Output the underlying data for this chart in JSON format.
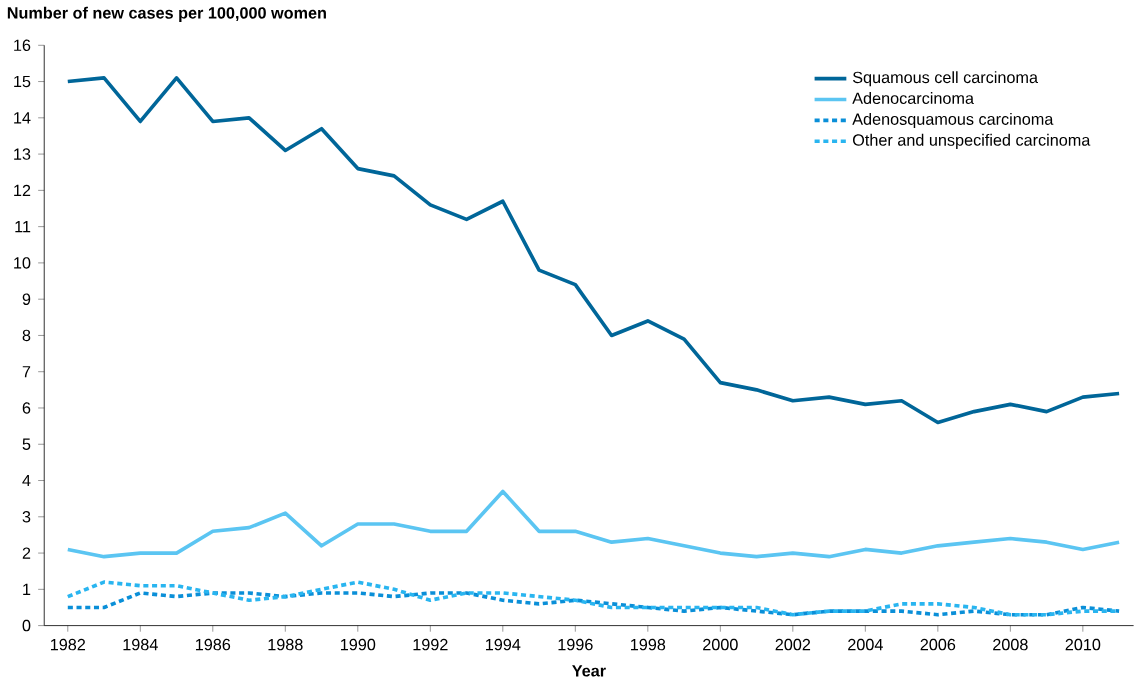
{
  "chart_data": {
    "type": "line",
    "ylabel": "Number of new cases per 100,000 women",
    "xlabel": "Year",
    "x": [
      1982,
      1983,
      1984,
      1985,
      1986,
      1987,
      1988,
      1989,
      1990,
      1991,
      1992,
      1993,
      1994,
      1995,
      1996,
      1997,
      1998,
      1999,
      2000,
      2001,
      2002,
      2003,
      2004,
      2005,
      2006,
      2007,
      2008,
      2009,
      2010,
      2011
    ],
    "series": [
      {
        "name": "Squamous cell carcinoma",
        "color": "#006699",
        "line_style": "solid",
        "values": [
          15.0,
          15.1,
          13.9,
          15.1,
          13.9,
          14.0,
          13.1,
          13.7,
          12.6,
          12.4,
          11.6,
          11.2,
          11.7,
          9.8,
          9.4,
          8.0,
          8.4,
          7.9,
          6.7,
          6.5,
          6.2,
          6.3,
          6.1,
          6.2,
          5.6,
          5.9,
          6.1,
          5.9,
          6.3,
          6.4
        ]
      },
      {
        "name": "Adenocarcinoma",
        "color": "#5bc5f2",
        "line_style": "solid",
        "values": [
          2.1,
          1.9,
          2.0,
          2.0,
          2.6,
          2.7,
          3.1,
          2.2,
          2.8,
          2.8,
          2.6,
          2.6,
          3.7,
          2.6,
          2.6,
          2.3,
          2.4,
          2.2,
          2.0,
          1.9,
          2.0,
          1.9,
          2.1,
          2.0,
          2.2,
          2.3,
          2.4,
          2.3,
          2.1,
          2.3
        ]
      },
      {
        "name": "Adenosquamous carcinoma",
        "color": "#0a8fd8",
        "line_style": "dotted",
        "values": [
          0.5,
          0.5,
          0.9,
          0.8,
          0.9,
          0.9,
          0.8,
          0.9,
          0.9,
          0.8,
          0.9,
          0.9,
          0.7,
          0.6,
          0.7,
          0.6,
          0.5,
          0.4,
          0.5,
          0.4,
          0.3,
          0.4,
          0.4,
          0.4,
          0.3,
          0.4,
          0.3,
          0.3,
          0.5,
          0.4
        ]
      },
      {
        "name": "Other and unspecified carcinoma",
        "color": "#29b5f0",
        "line_style": "dotted",
        "values": [
          0.8,
          1.2,
          1.1,
          1.1,
          0.9,
          0.7,
          0.8,
          1.0,
          1.2,
          1.0,
          0.7,
          0.9,
          0.9,
          0.8,
          0.7,
          0.5,
          0.5,
          0.5,
          0.5,
          0.5,
          0.3,
          0.4,
          0.4,
          0.6,
          0.6,
          0.5,
          0.3,
          0.3,
          0.4,
          0.4
        ]
      }
    ],
    "xlim": [
      1981.35,
      2011.4
    ],
    "ylim": [
      0,
      16
    ],
    "xticks": [
      1982,
      1984,
      1986,
      1988,
      1990,
      1992,
      1994,
      1996,
      1998,
      2000,
      2002,
      2004,
      2006,
      2008,
      2010
    ],
    "yticks": [
      0,
      1,
      2,
      3,
      4,
      5,
      6,
      7,
      8,
      9,
      10,
      11,
      12,
      13,
      14,
      15,
      16
    ],
    "legend": "top right",
    "grid": false
  }
}
